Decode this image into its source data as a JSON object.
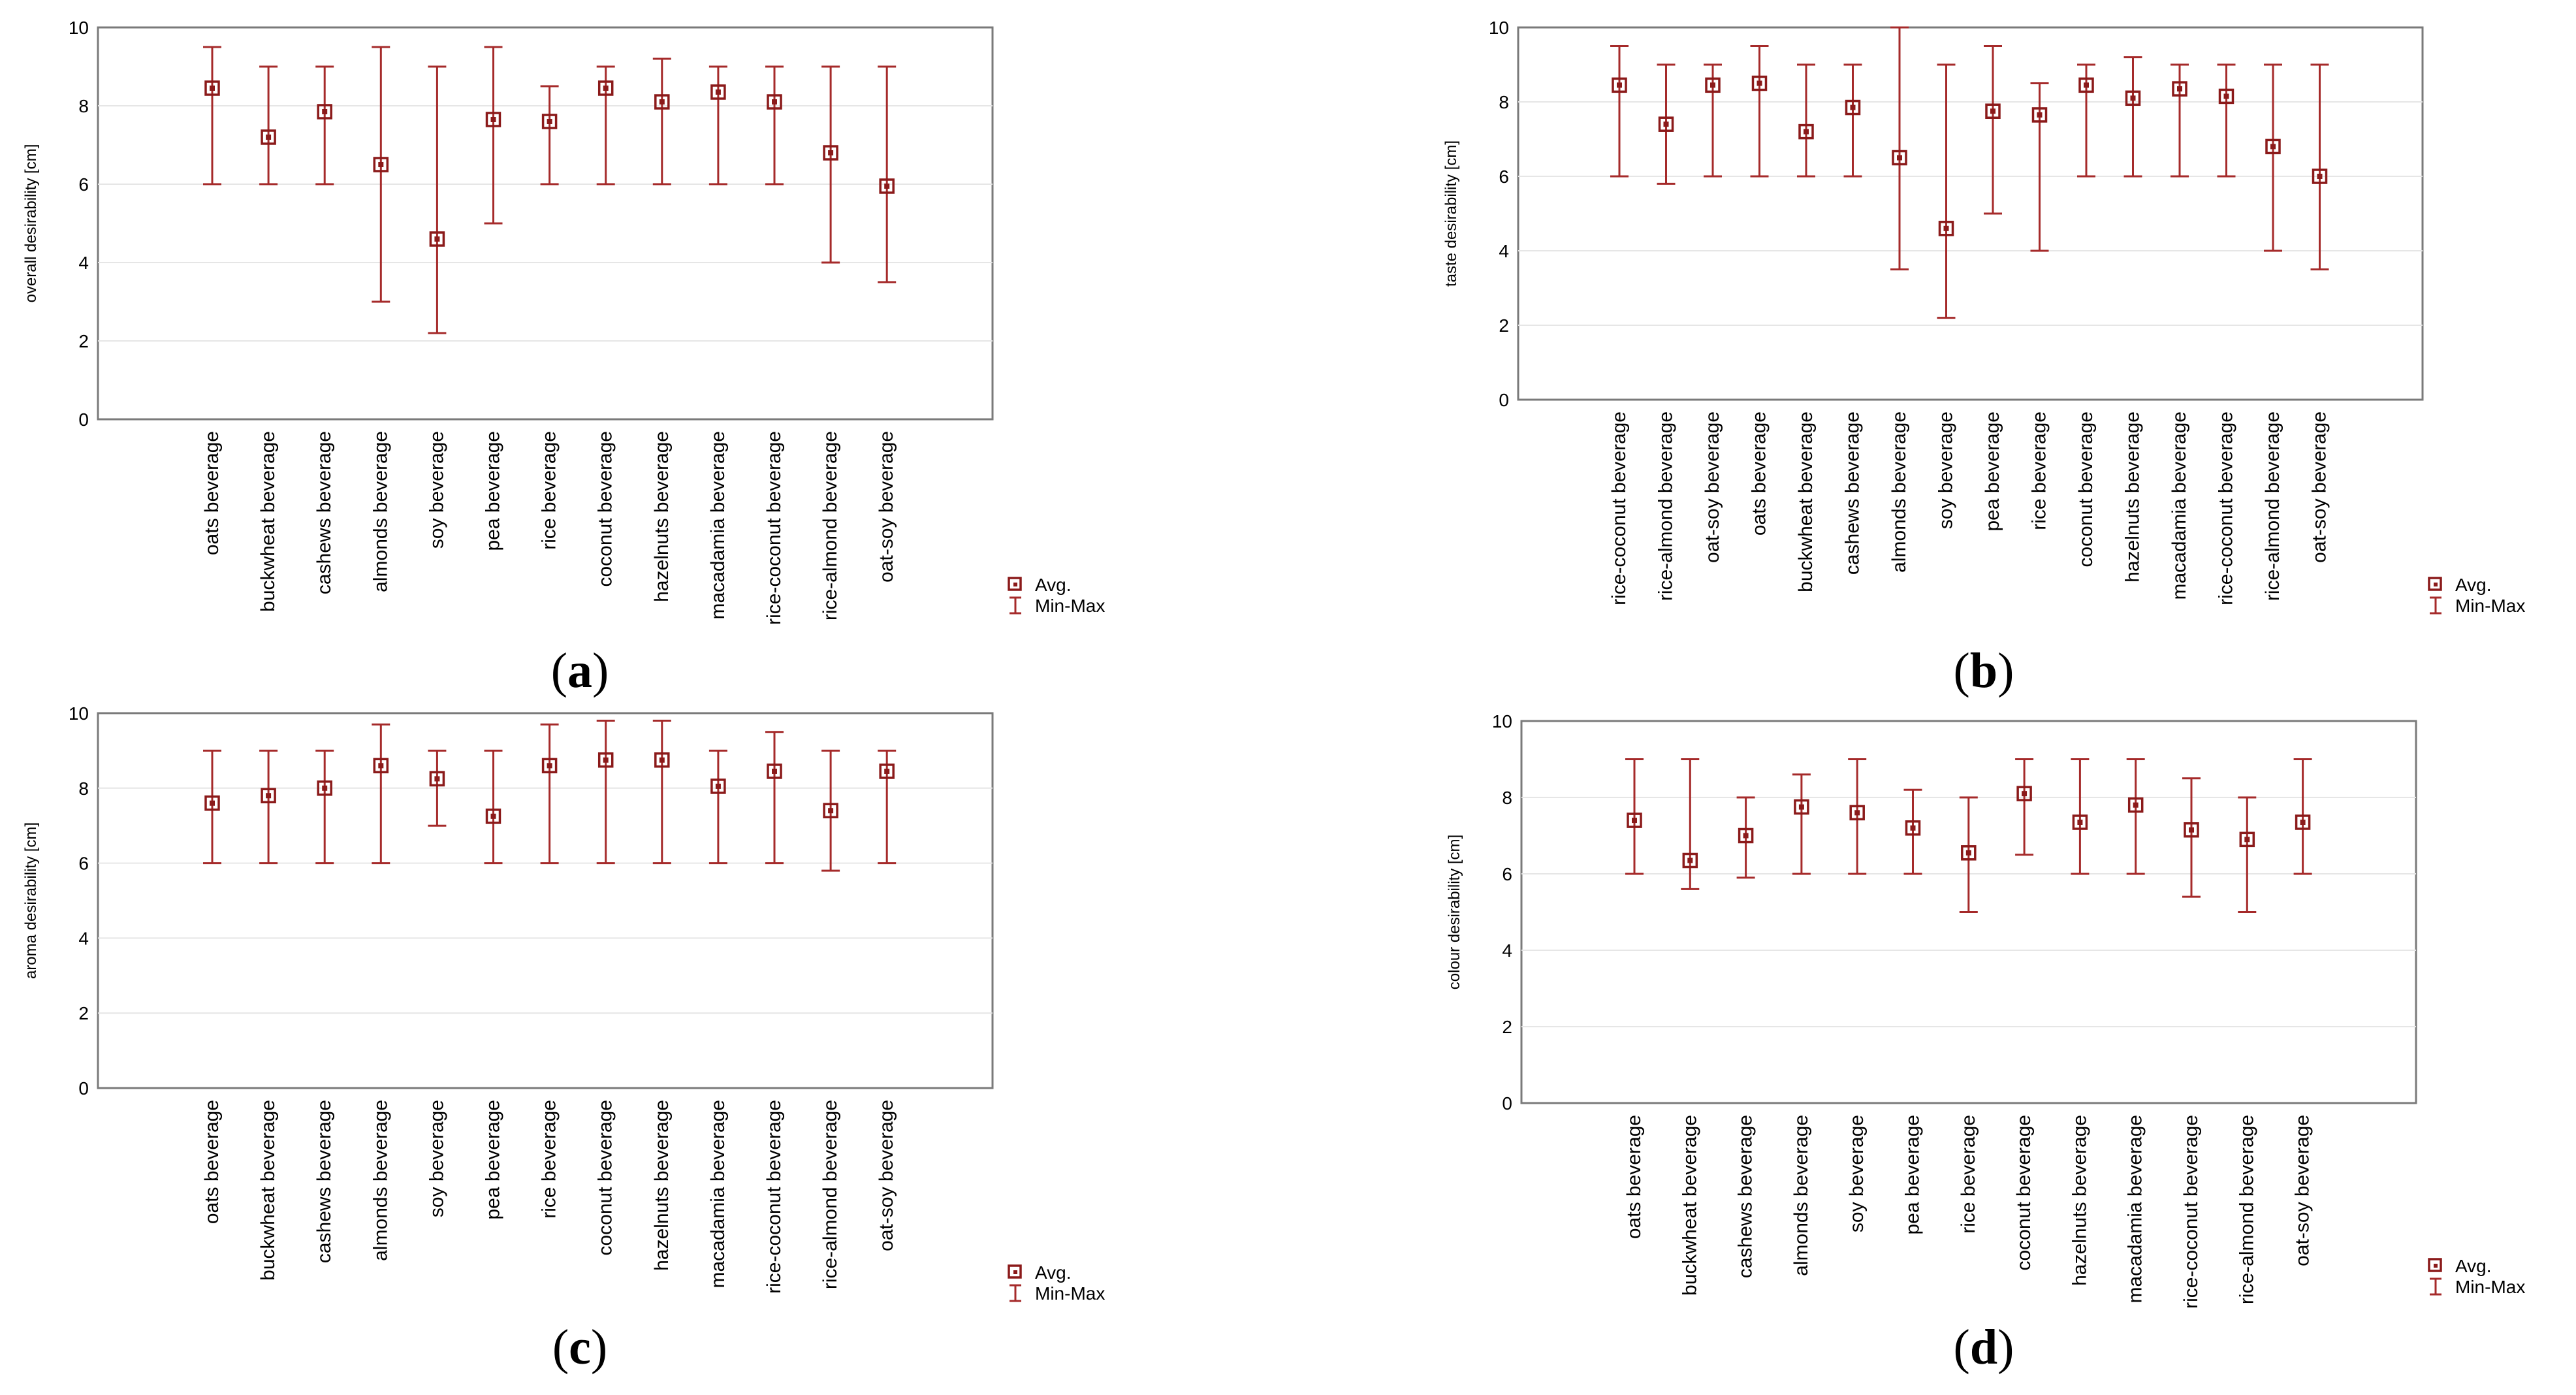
{
  "chart_data": [
    {
      "id": "a",
      "type": "error-bar",
      "panel_label": "a",
      "ylabel": "overall desirability [cm]",
      "ylim": [
        0,
        10
      ],
      "yticks": [
        0,
        2,
        4,
        6,
        8,
        10
      ],
      "grid": true,
      "categories": [
        "oats beverage",
        "buckwheat beverage",
        "cashews beverage",
        "almonds beverage",
        "soy beverage",
        "pea beverage",
        "rice beverage",
        "coconut beverage",
        "hazelnuts beverage",
        "macadamia beverage",
        "rice-coconut beverage",
        "rice-almond beverage",
        "oat-soy beverage"
      ],
      "avg": [
        8.45,
        7.2,
        7.85,
        6.5,
        4.6,
        7.65,
        7.6,
        8.45,
        8.1,
        8.35,
        8.1,
        6.8,
        5.95
      ],
      "min": [
        6,
        6,
        6,
        3,
        2.2,
        5,
        6,
        6,
        6,
        6,
        6,
        4,
        3.5
      ],
      "max": [
        9.5,
        9,
        9,
        9.5,
        9,
        9.5,
        8.5,
        9,
        9.2,
        9,
        9,
        9,
        9
      ],
      "legend": [
        "Avg.",
        "Min-Max"
      ],
      "legend_position": "right-bottom"
    },
    {
      "id": "b",
      "type": "error-bar",
      "panel_label": "b",
      "ylabel": "taste  desirability [cm]",
      "ylim": [
        0,
        10
      ],
      "yticks": [
        0,
        2,
        4,
        6,
        8,
        10
      ],
      "grid": true,
      "categories": [
        "rice-coconut beverage",
        "rice-almond beverage",
        "oat-soy beverage",
        "oats beverage",
        "buckwheat beverage",
        "cashews beverage",
        "almonds beverage",
        "soy beverage",
        "pea beverage",
        "rice beverage",
        "coconut beverage",
        "hazelnuts beverage",
        "macadamia beverage",
        "rice-coconut beverage",
        "rice-almond beverage",
        "oat-soy beverage"
      ],
      "avg": [
        8.45,
        7.4,
        8.45,
        8.5,
        7.2,
        7.85,
        6.5,
        4.6,
        7.75,
        7.65,
        8.45,
        8.1,
        8.35,
        8.15,
        6.8,
        6.0
      ],
      "min": [
        6,
        5.8,
        6,
        6,
        6,
        6,
        3.5,
        2.2,
        5,
        4,
        6,
        6,
        6,
        6,
        4,
        3.5
      ],
      "max": [
        9.5,
        9,
        9,
        9.5,
        9,
        9,
        10,
        9,
        9.5,
        8.5,
        9,
        9.2,
        9,
        9,
        9,
        9
      ],
      "legend": [
        "Avg.",
        "Min-Max"
      ],
      "legend_position": "right-bottom"
    },
    {
      "id": "c",
      "type": "error-bar",
      "panel_label": "c",
      "ylabel": "aroma desirability [cm]",
      "ylim": [
        0,
        10
      ],
      "yticks": [
        0,
        2,
        4,
        6,
        8,
        10
      ],
      "grid": true,
      "categories": [
        "oats beverage",
        "buckwheat beverage",
        "cashews beverage",
        "almonds beverage",
        "soy beverage",
        "pea beverage",
        "rice beverage",
        "coconut beverage",
        "hazelnuts beverage",
        "macadamia beverage",
        "rice-coconut beverage",
        "rice-almond beverage",
        "oat-soy beverage"
      ],
      "avg": [
        7.6,
        7.8,
        8.0,
        8.6,
        8.25,
        7.25,
        8.6,
        8.75,
        8.75,
        8.05,
        8.45,
        7.4,
        8.45
      ],
      "min": [
        6,
        6,
        6,
        6,
        7,
        6,
        6,
        6,
        6,
        6,
        6,
        5.8,
        6
      ],
      "max": [
        9,
        9,
        9,
        9.7,
        9,
        9,
        9.7,
        9.8,
        9.8,
        9,
        9.5,
        9,
        9
      ],
      "legend": [
        "Avg.",
        "Min-Max"
      ],
      "legend_position": "right-bottom"
    },
    {
      "id": "d",
      "type": "error-bar",
      "panel_label": "d",
      "ylabel": "colour desirability [cm]",
      "ylim": [
        0,
        10
      ],
      "yticks": [
        0,
        2,
        4,
        6,
        8,
        10
      ],
      "grid": true,
      "categories": [
        "oats beverage",
        "buckwheat beverage",
        "cashews beverage",
        "almonds beverage",
        "soy beverage",
        "pea beverage",
        "rice beverage",
        "coconut beverage",
        "hazelnuts beverage",
        "macadamia beverage",
        "rice-coconut beverage",
        "rice-almond beverage",
        "oat-soy beverage"
      ],
      "avg": [
        7.4,
        6.35,
        7.0,
        7.75,
        7.6,
        7.2,
        6.55,
        8.1,
        7.35,
        7.8,
        7.15,
        6.9,
        7.35
      ],
      "min": [
        6,
        5.6,
        5.9,
        6,
        6,
        6,
        5,
        6.5,
        6,
        6,
        5.4,
        5,
        6
      ],
      "max": [
        9,
        9,
        8,
        8.6,
        9,
        8.2,
        8,
        9,
        9,
        9,
        8.5,
        8,
        9
      ],
      "legend": [
        "Avg.",
        "Min-Max"
      ],
      "legend_position": "right-bottom"
    }
  ]
}
